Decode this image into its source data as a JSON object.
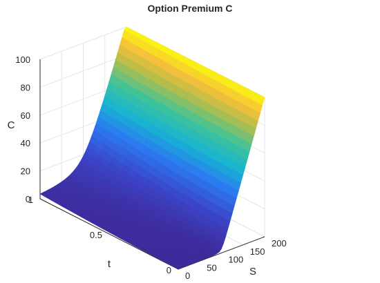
{
  "chart_data": {
    "type": "surface",
    "title": "Option Premium C",
    "xlabel": "S",
    "ylabel": "t",
    "zlabel": "C",
    "xlim": [
      0,
      200
    ],
    "ylim": [
      0,
      1
    ],
    "zlim": [
      0,
      100
    ],
    "x_ticks": [
      0,
      50,
      100,
      150,
      200
    ],
    "y_ticks": [
      0,
      0.5,
      1
    ],
    "z_ticks": [
      0,
      20,
      40,
      60,
      80,
      100
    ],
    "colormap": "parula",
    "grid": true,
    "approx_values": {
      "description_levels": [
        {
          "S": 100,
          "t": 0,
          "C": 0
        },
        {
          "S": 100,
          "t": 1,
          "C": 0
        },
        {
          "S": 200,
          "t": 0,
          "C": 100
        },
        {
          "S": 200,
          "t": 1,
          "C": 100
        }
      ]
    },
    "strike": 100
  }
}
